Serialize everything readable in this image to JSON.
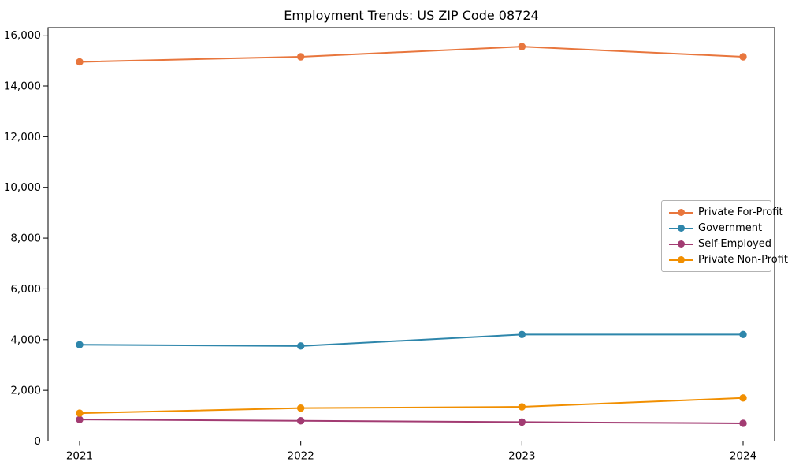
{
  "figure": {
    "title": "Employment Trends: US ZIP Code 08724"
  },
  "chart_data": {
    "type": "line",
    "title": "Employment Trends: US ZIP Code 08724",
    "categories": [
      "2021",
      "2022",
      "2023",
      "2024"
    ],
    "series": [
      {
        "name": "Private For-Profit",
        "color": "#E8763D",
        "values": [
          14950,
          15150,
          15550,
          15150
        ]
      },
      {
        "name": "Government",
        "color": "#2E86AB",
        "values": [
          3800,
          3750,
          4200,
          4200
        ]
      },
      {
        "name": "Self-Employed",
        "color": "#A23B72",
        "values": [
          850,
          800,
          750,
          700
        ]
      },
      {
        "name": "Private Non-Profit",
        "color": "#F18F01",
        "values": [
          1100,
          1300,
          1350,
          1700
        ]
      }
    ],
    "xlabel": "",
    "ylabel": "",
    "ylim": [
      0,
      16300
    ],
    "yticks": [
      0,
      2000,
      4000,
      6000,
      8000,
      10000,
      12000,
      14000,
      16000
    ],
    "legend_position": "center right",
    "grid": false,
    "marker": "circle",
    "axis_color": "#000000"
  }
}
